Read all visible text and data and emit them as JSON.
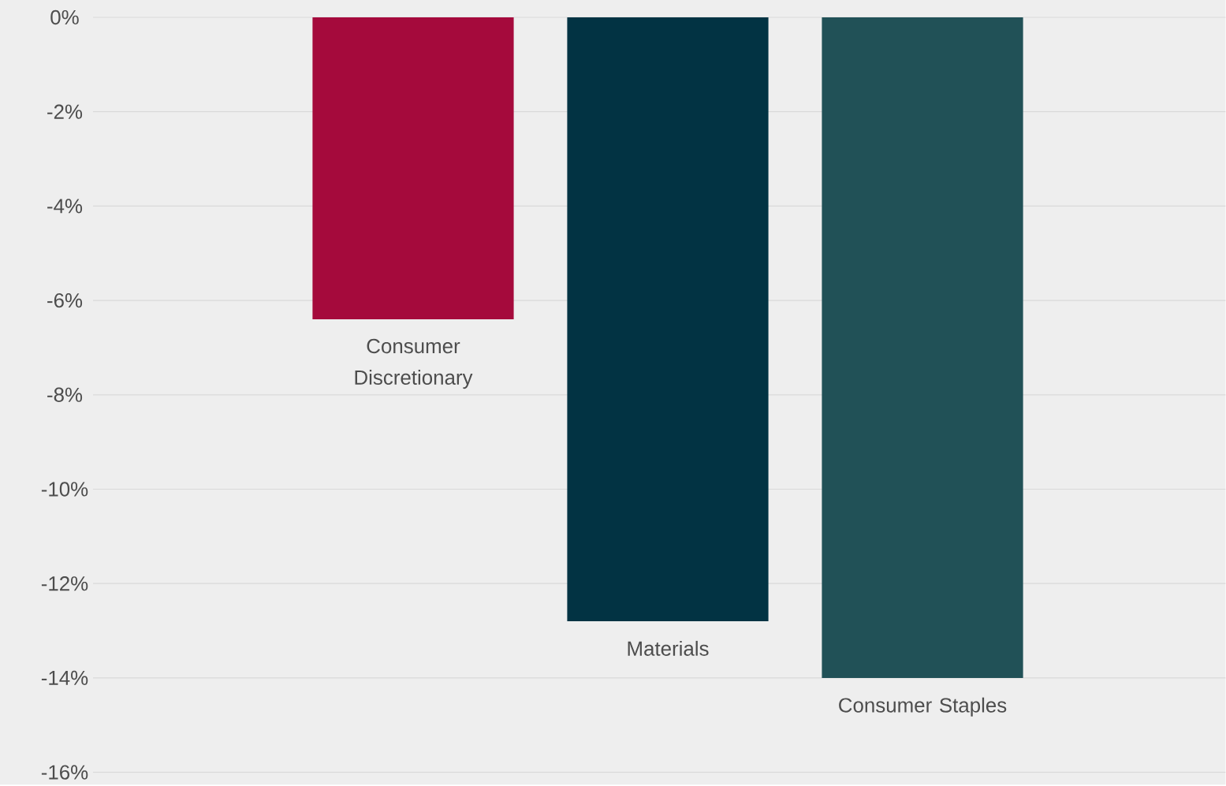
{
  "chart_data": {
    "type": "bar",
    "categories": [
      "Consumer Discretionary",
      "Materials",
      "Consumer Staples"
    ],
    "values": [
      -6.4,
      -12.8,
      -14.0
    ],
    "colors": [
      "#a50a3c",
      "#023343",
      "#215157"
    ],
    "ylim": [
      -16,
      0
    ],
    "yticks": [
      {
        "value": -16,
        "label": "-16%"
      },
      {
        "value": -14,
        "label": "-14%"
      },
      {
        "value": -12,
        "label": "-12%"
      },
      {
        "value": -10,
        "label": "-10%"
      },
      {
        "value": -8,
        "label": "-8%"
      },
      {
        "value": -6,
        "label": "-6%"
      },
      {
        "value": -4,
        "label": "-4%"
      },
      {
        "value": -2,
        "label": "-2%"
      },
      {
        "value": 0,
        "label": "0%"
      }
    ],
    "grid": "y"
  }
}
